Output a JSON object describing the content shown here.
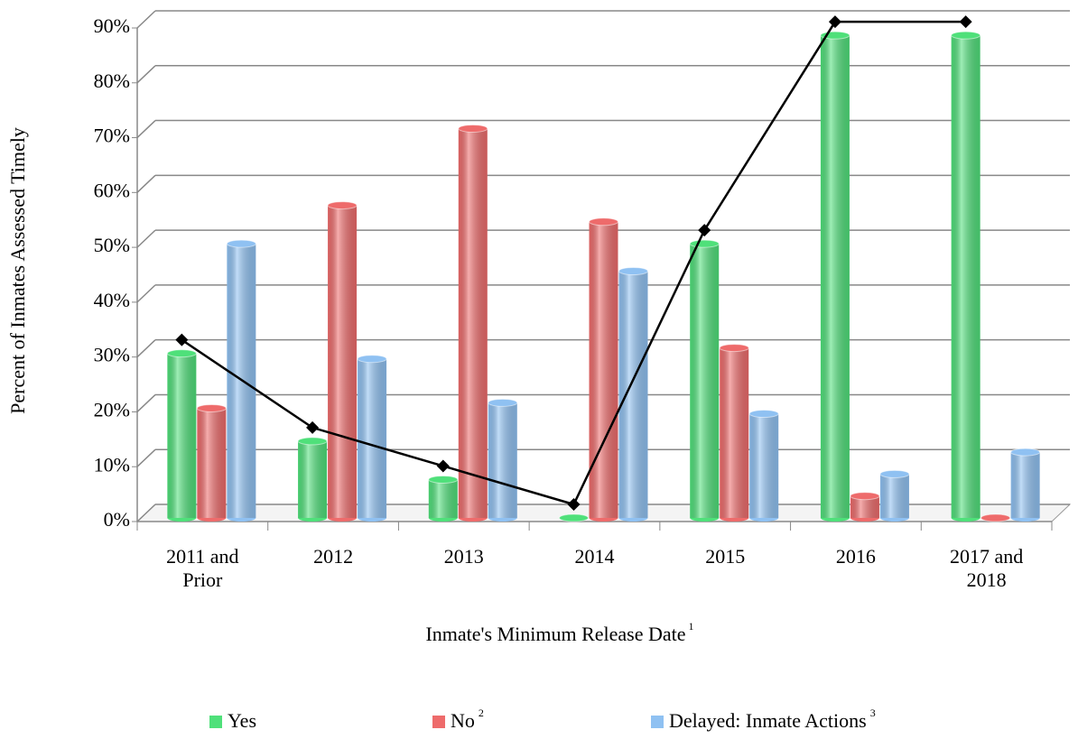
{
  "chart_data": {
    "type": "bar",
    "y_label": "Percent of Inmates Assessed Timely",
    "x_label": "Inmate's Minimum Release Date",
    "x_label_note": "1",
    "categories": [
      "2011 and Prior",
      "2012",
      "2013",
      "2014",
      "2015",
      "2016",
      "2017 and 2018"
    ],
    "series": [
      {
        "name": "Yes",
        "color": "#4fe07a",
        "values": [
          30,
          14,
          7,
          0,
          50,
          88,
          88
        ]
      },
      {
        "name": "No",
        "note": "2",
        "color": "#ee6b6b",
        "values": [
          20,
          57,
          71,
          54,
          31,
          4,
          0
        ]
      },
      {
        "name": "Delayed: Inmate Actions",
        "note": "3",
        "color": "#8fc1f2",
        "values": [
          50,
          29,
          21,
          45,
          19,
          8,
          12
        ]
      },
      {
        "type": "line",
        "color": "#000000",
        "values": [
          30,
          14,
          7,
          0,
          50,
          88,
          88
        ]
      }
    ],
    "ylim": [
      0,
      90
    ],
    "yticks": [
      {
        "value": 0,
        "label": "0%"
      },
      {
        "value": 10,
        "label": "10%"
      },
      {
        "value": 20,
        "label": "20%"
      },
      {
        "value": 30,
        "label": "30%"
      },
      {
        "value": 40,
        "label": "40%"
      },
      {
        "value": 50,
        "label": "50%"
      },
      {
        "value": 60,
        "label": "60%"
      },
      {
        "value": 70,
        "label": "70%"
      },
      {
        "value": 80,
        "label": "80%"
      },
      {
        "value": 90,
        "label": "90%"
      }
    ],
    "grid": true
  }
}
